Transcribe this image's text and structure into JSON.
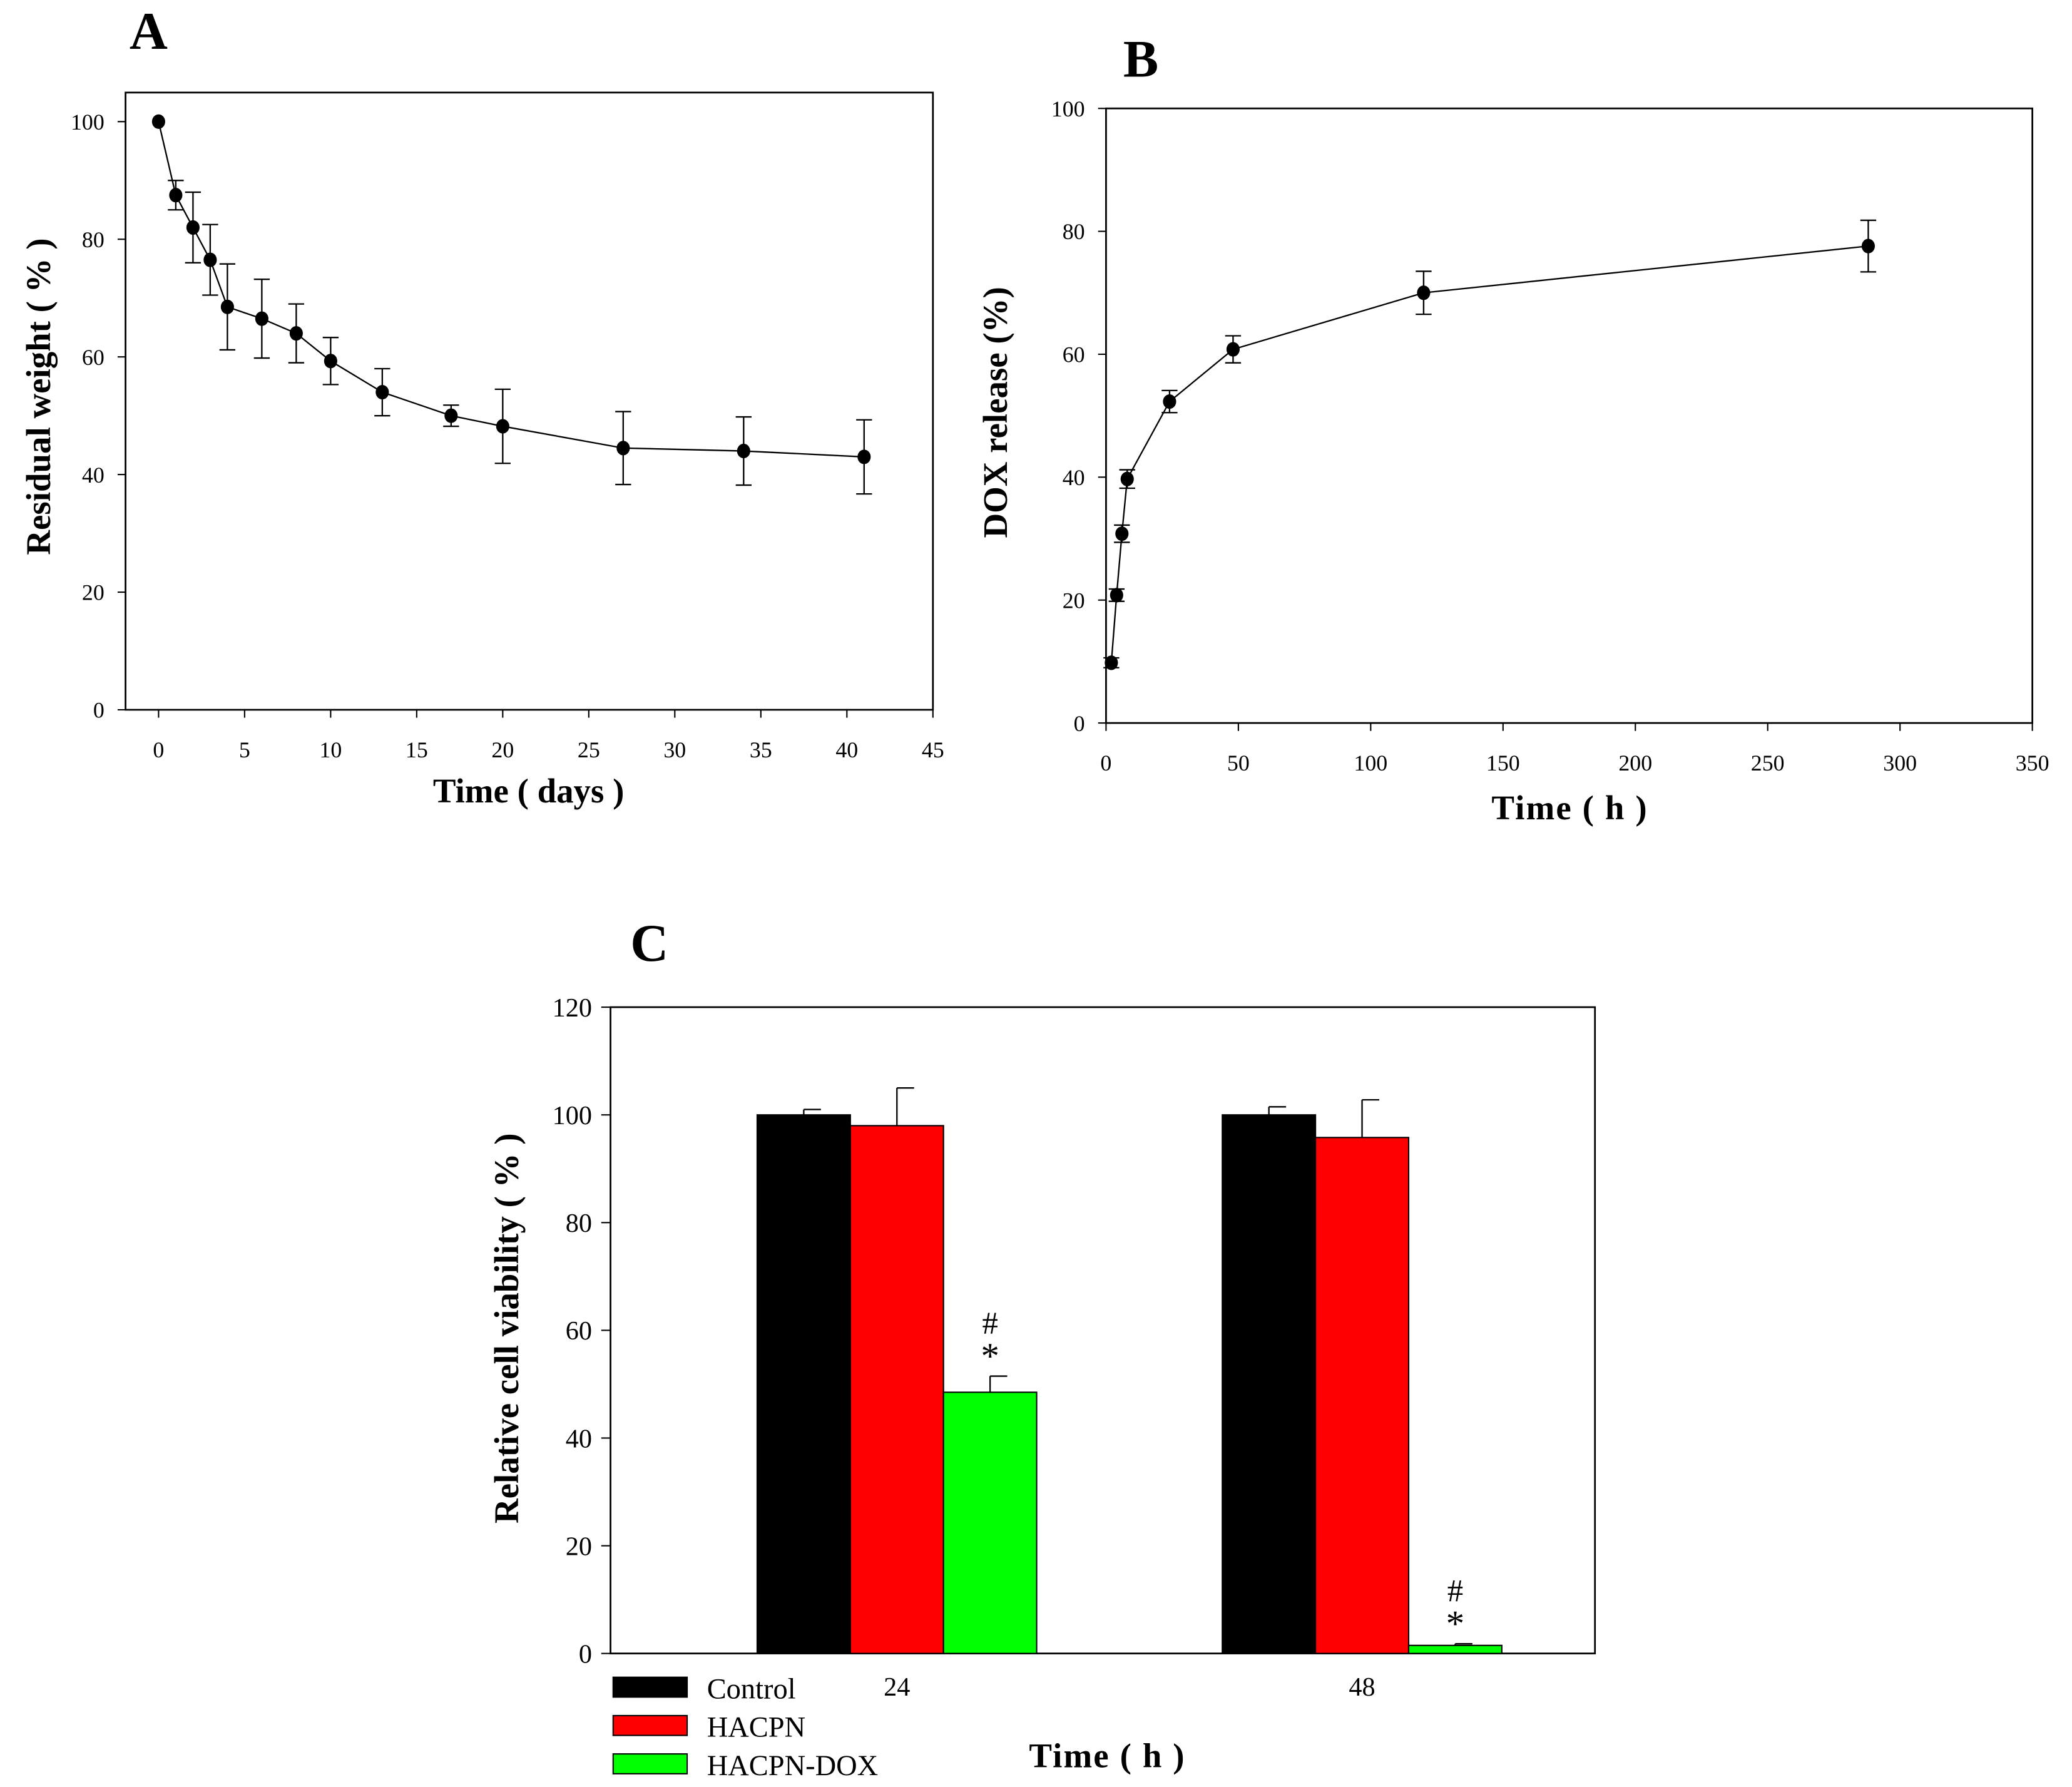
{
  "chart_data": [
    {
      "panel": "A",
      "type": "line",
      "xlabel": "Time ( days )",
      "ylabel": "Residual weight ( % )",
      "xlim": [
        0,
        45
      ],
      "ylim": [
        0,
        100
      ],
      "xticks": [
        0,
        5,
        10,
        15,
        20,
        25,
        30,
        35,
        40,
        45
      ],
      "yticks": [
        0,
        20,
        40,
        60,
        80,
        100
      ],
      "x": [
        0,
        1,
        2,
        3,
        4,
        6,
        8,
        10,
        13,
        17,
        20,
        27,
        34,
        41
      ],
      "y": [
        100,
        87.5,
        82,
        76.5,
        68.5,
        66.5,
        64,
        59.3,
        54,
        50,
        48.2,
        44.5,
        44,
        43
      ],
      "error": [
        0,
        2.5,
        6,
        6,
        7.3,
        6.7,
        5,
        4,
        4,
        1.8,
        6.3,
        6.2,
        5.8,
        6.3
      ]
    },
    {
      "panel": "B",
      "type": "line",
      "xlabel": "Time ( h )",
      "ylabel": "DOX release (%)",
      "xlim": [
        0,
        350
      ],
      "ylim": [
        0,
        100
      ],
      "xticks": [
        0,
        50,
        100,
        150,
        200,
        250,
        300,
        350
      ],
      "yticks": [
        0,
        20,
        40,
        60,
        80,
        100
      ],
      "x": [
        2,
        4,
        6,
        8,
        24,
        48,
        120,
        288
      ],
      "y": [
        9.8,
        20.8,
        30.8,
        39.7,
        52.3,
        60.8,
        70,
        77.6
      ],
      "error": [
        0.8,
        1,
        1.4,
        1.5,
        1.8,
        2.2,
        3.5,
        4.2
      ]
    },
    {
      "panel": "C",
      "type": "bar",
      "xlabel": "Time ( h )",
      "ylabel": "Relative cell viability ( % )",
      "ylim": [
        0,
        120
      ],
      "yticks": [
        0,
        20,
        40,
        60,
        80,
        100,
        120
      ],
      "categories": [
        "24",
        "48"
      ],
      "legend_position": "bottom-left",
      "series": [
        {
          "name": "Control",
          "color": "#000000",
          "values": [
            100,
            100
          ],
          "error": [
            1,
            1.5
          ]
        },
        {
          "name": "HACPN",
          "color": "#ff0000",
          "values": [
            98,
            95.8
          ],
          "error": [
            7,
            7
          ]
        },
        {
          "name": "HACPN-DOX",
          "color": "#00ff00",
          "values": [
            48.5,
            1.5
          ],
          "error": [
            3,
            0.3
          ]
        }
      ],
      "annotations": [
        "#",
        "*"
      ]
    }
  ]
}
